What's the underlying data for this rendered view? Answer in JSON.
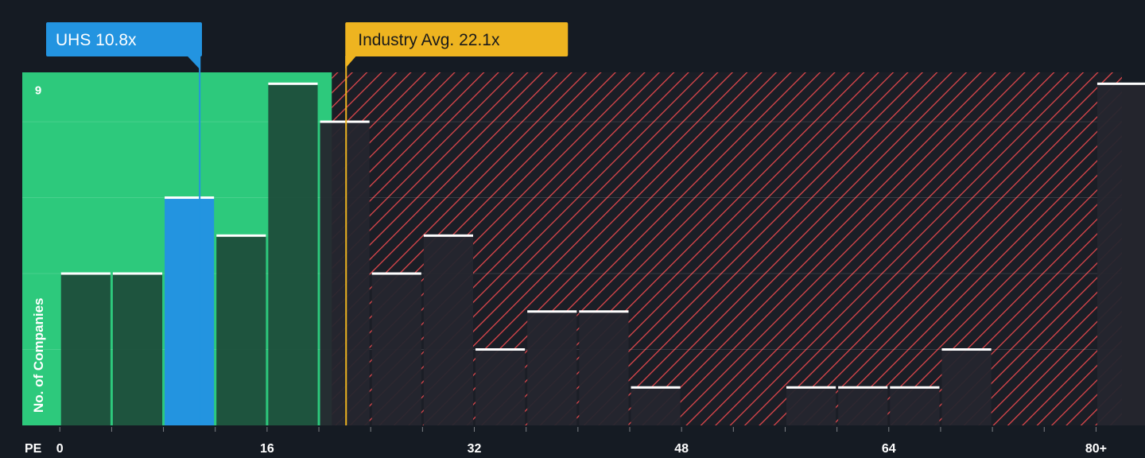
{
  "chart_data": {
    "type": "bar",
    "title": "",
    "xlabel": "PE",
    "ylabel": "No. of Companies",
    "x_tick_labels": [
      "0",
      "16",
      "32",
      "48",
      "64",
      "80+"
    ],
    "x_tick_values": [
      0,
      16,
      32,
      48,
      64,
      80
    ],
    "y_tick_labels": [
      "9"
    ],
    "y_tick_values": [
      9
    ],
    "ylim": [
      0,
      9.3
    ],
    "xlim": [
      -2.9,
      82
    ],
    "bin_width": 4,
    "bins": [
      {
        "start": 0,
        "value": 4
      },
      {
        "start": 4,
        "value": 4
      },
      {
        "start": 8,
        "value": 6
      },
      {
        "start": 12,
        "value": 5
      },
      {
        "start": 16,
        "value": 9
      },
      {
        "start": 20,
        "value": 8
      },
      {
        "start": 24,
        "value": 4
      },
      {
        "start": 28,
        "value": 5
      },
      {
        "start": 32,
        "value": 2
      },
      {
        "start": 36,
        "value": 3
      },
      {
        "start": 40,
        "value": 3
      },
      {
        "start": 44,
        "value": 1
      },
      {
        "start": 48,
        "value": 0
      },
      {
        "start": 52,
        "value": 0
      },
      {
        "start": 56,
        "value": 1
      },
      {
        "start": 60,
        "value": 1
      },
      {
        "start": 64,
        "value": 1
      },
      {
        "start": 68,
        "value": 2
      },
      {
        "start": 72,
        "value": 0
      },
      {
        "start": 76,
        "value": 0
      },
      {
        "start": 80,
        "value": 9
      }
    ],
    "highlight_bin_start": 8,
    "company": {
      "label": "UHS 10.8x",
      "value": 10.8
    },
    "industry": {
      "label": "Industry Avg. 22.1x",
      "value": 22.1
    },
    "undervalued_zone_end": 21,
    "colors": {
      "background": "#151b23",
      "undervalued_zone": "#2dc97c",
      "overvalued_hatch": "#e0474c",
      "bar_in_green_zone": "#1d4a38",
      "bar_in_red_zone": "#25262e",
      "company_bar": "#2394e0",
      "company_label": "#2394e0",
      "industry_label": "#eeb420",
      "bar_cap": "#ffffff",
      "axis_text": "#ffffff"
    },
    "grid": true
  }
}
